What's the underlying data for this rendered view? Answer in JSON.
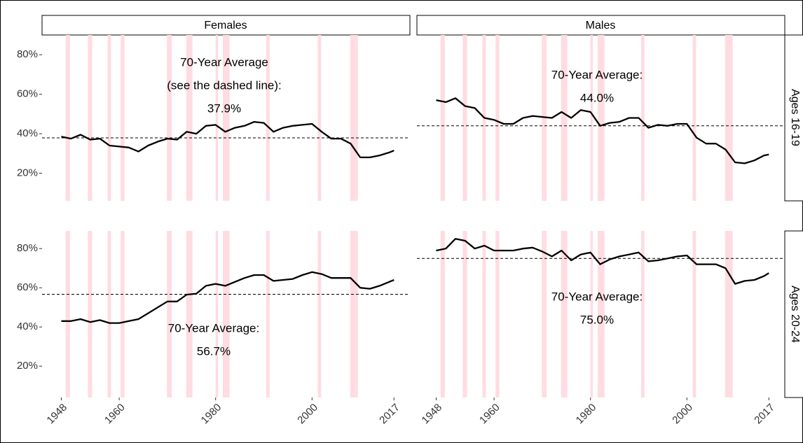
{
  "columns": [
    "Females",
    "Males"
  ],
  "rows": [
    "Ages 16-19",
    "Ages 20-24"
  ],
  "recessions": [
    [
      1948.9,
      1949.8
    ],
    [
      1953.5,
      1954.4
    ],
    [
      1957.6,
      1958.3
    ],
    [
      1960.3,
      1961.1
    ],
    [
      1969.9,
      1970.9
    ],
    [
      1973.9,
      1975.2
    ],
    [
      1980.0,
      1980.5
    ],
    [
      1981.5,
      1982.9
    ],
    [
      1990.5,
      1991.2
    ],
    [
      2001.2,
      2001.9
    ],
    [
      2007.9,
      2009.5
    ]
  ],
  "chart_data": [
    {
      "type": "line",
      "color": "#000000",
      "x": [
        1948,
        1950,
        1952,
        1954,
        1956,
        1958,
        1960,
        1962,
        1964,
        1966,
        1968,
        1970,
        1972,
        1974,
        1976,
        1978,
        1980,
        1982,
        1984,
        1986,
        1988,
        1990,
        1992,
        1994,
        1996,
        1998,
        2000,
        2002,
        2004,
        2006,
        2008,
        2010,
        2012,
        2014,
        2016,
        2017
      ],
      "values": [
        38.5,
        37.5,
        39.5,
        37,
        37.5,
        34,
        33.5,
        33,
        31,
        34,
        36,
        37.5,
        37,
        41,
        40,
        44,
        44.5,
        41,
        43,
        44,
        46,
        45.5,
        41,
        43,
        44,
        44.5,
        45,
        41,
        37.5,
        37.5,
        35,
        28,
        28,
        29,
        30.5,
        31.5
      ],
      "xlim": [
        1944,
        2020.3
      ],
      "ylim": [
        6,
        90
      ],
      "yticks": [
        {
          "value": 20,
          "label": "20%"
        },
        {
          "value": 40,
          "label": "40%"
        },
        {
          "value": 60,
          "label": "60%"
        },
        {
          "value": 80,
          "label": "80%"
        }
      ],
      "average": 37.9,
      "average_label": "37.9%",
      "annotation": [
        "70-Year Average",
        "(see the dashed line):"
      ]
    },
    {
      "type": "line",
      "color": "#000000",
      "x": [
        1948,
        1950,
        1952,
        1954,
        1956,
        1958,
        1960,
        1962,
        1964,
        1966,
        1968,
        1970,
        1972,
        1974,
        1976,
        1978,
        1980,
        1982,
        1984,
        1986,
        1988,
        1990,
        1992,
        1994,
        1996,
        1998,
        2000,
        2002,
        2004,
        2006,
        2008,
        2010,
        2012,
        2014,
        2016,
        2017
      ],
      "values": [
        57,
        56,
        58,
        54,
        53,
        48,
        47,
        45,
        45,
        48,
        49,
        48.5,
        48,
        51,
        48,
        52,
        51,
        44,
        45.5,
        46,
        48,
        48,
        43,
        44.5,
        44,
        45,
        45,
        38,
        35,
        35,
        32,
        25.5,
        25,
        26.5,
        29,
        29.5
      ],
      "xlim": [
        1944,
        2020.3
      ],
      "ylim": [
        6,
        90
      ],
      "average": 44.0,
      "average_label": "44.0%",
      "annotation": [
        "70-Year Average:"
      ]
    },
    {
      "type": "line",
      "color": "#000000",
      "x": [
        1948,
        1950,
        1952,
        1954,
        1956,
        1958,
        1960,
        1962,
        1964,
        1966,
        1968,
        1970,
        1972,
        1974,
        1976,
        1978,
        1980,
        1982,
        1984,
        1986,
        1988,
        1990,
        1992,
        1994,
        1996,
        1998,
        2000,
        2002,
        2004,
        2006,
        2008,
        2010,
        2012,
        2014,
        2016,
        2017
      ],
      "values": [
        43,
        43,
        44,
        42.5,
        43.5,
        42,
        42,
        43,
        44,
        47,
        50,
        53,
        53,
        56.5,
        57,
        61,
        62,
        61,
        63,
        65,
        66.5,
        66.5,
        63.5,
        64,
        64.5,
        66.5,
        68,
        67,
        65,
        65,
        65,
        60,
        59.5,
        61,
        63,
        64
      ],
      "xlim": [
        1944,
        2020.3
      ],
      "ylim": [
        4,
        89
      ],
      "yticks": [
        {
          "value": 20,
          "label": "20%"
        },
        {
          "value": 40,
          "label": "40%"
        },
        {
          "value": 60,
          "label": "60%"
        },
        {
          "value": 80,
          "label": "80%"
        }
      ],
      "xticks": [
        1948,
        1960,
        1980,
        2000,
        2017
      ],
      "average": 56.7,
      "average_label": "56.7%",
      "annotation": [
        "70-Year Average:"
      ]
    },
    {
      "type": "line",
      "color": "#000000",
      "x": [
        1948,
        1950,
        1952,
        1954,
        1956,
        1958,
        1960,
        1962,
        1964,
        1966,
        1968,
        1970,
        1972,
        1974,
        1976,
        1978,
        1980,
        1982,
        1984,
        1986,
        1988,
        1990,
        1992,
        1994,
        1996,
        1998,
        2000,
        2002,
        2004,
        2006,
        2008,
        2010,
        2012,
        2014,
        2016,
        2017
      ],
      "values": [
        79,
        80,
        85,
        84,
        80,
        81.5,
        79,
        79,
        79,
        80,
        80.5,
        78.5,
        76,
        79,
        74,
        77,
        78,
        72,
        74.5,
        76,
        77,
        78,
        73.5,
        74,
        75,
        76,
        76.5,
        72,
        72,
        72,
        70,
        62,
        63.5,
        64,
        66,
        67.5
      ],
      "xlim": [
        1944,
        2020.3
      ],
      "ylim": [
        4,
        89
      ],
      "xticks": [
        1948,
        1960,
        1980,
        2000,
        2017
      ],
      "average": 75.0,
      "average_label": "75.0%",
      "annotation": [
        "70-Year Average:"
      ]
    }
  ]
}
